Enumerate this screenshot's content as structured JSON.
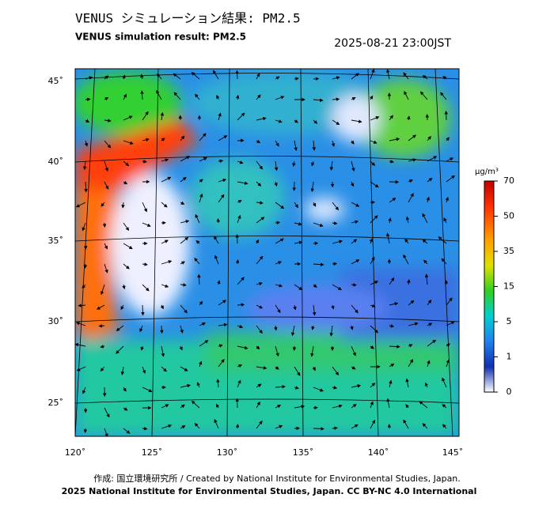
{
  "header": {
    "title_ja": "VENUS シミュレーション結果: PM2.5",
    "title_en": "VENUS simulation result: PM2.5",
    "timestamp": "2025-08-21 23:00JST"
  },
  "map": {
    "lat_labels": [
      "45˚",
      "40˚",
      "35˚",
      "30˚",
      "25˚"
    ],
    "lon_labels": [
      "120˚",
      "125˚",
      "130˚",
      "135˚",
      "140˚",
      "145˚"
    ]
  },
  "colorbar": {
    "unit": "μg/m³",
    "ticks": [
      70,
      50,
      35,
      15,
      5,
      1,
      0
    ]
  },
  "footer": {
    "credit": "作成: 国立環境研究所 / Created by National Institute for Environmental Studies, Japan.",
    "copyright": "2025 National Institute for Environmental Studies, Japan. CC BY-NC 4.0 International"
  }
}
